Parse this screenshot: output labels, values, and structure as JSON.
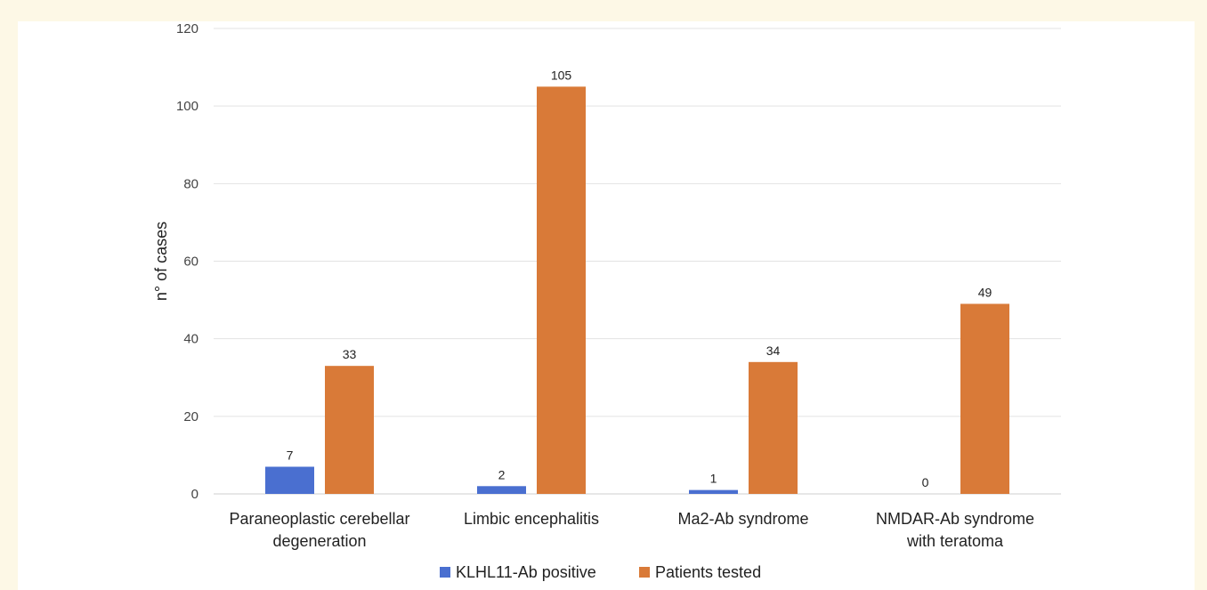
{
  "chart_data": {
    "type": "bar",
    "ylabel": "n° of cases",
    "xlabel": "",
    "ylim": [
      0,
      120
    ],
    "yticks": [
      0,
      20,
      40,
      60,
      80,
      100,
      120
    ],
    "grid": true,
    "legend_position": "bottom",
    "categories": [
      [
        "Paraneoplastic cerebellar",
        "degeneration"
      ],
      [
        "Limbic encephalitis"
      ],
      [
        "Ma2-Ab syndrome"
      ],
      [
        "NMDAR-Ab syndrome",
        "with teratoma"
      ]
    ],
    "series": [
      {
        "name": "KLHL11-Ab positive",
        "values": [
          7,
          2,
          1,
          0
        ],
        "color": "#4a6fd0"
      },
      {
        "name": "Patients tested",
        "values": [
          33,
          105,
          34,
          49
        ],
        "color": "#d97a38"
      }
    ]
  }
}
